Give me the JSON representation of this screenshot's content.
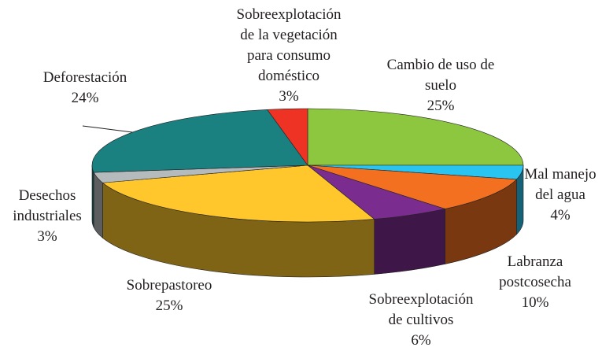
{
  "chart_data": {
    "type": "pie3d",
    "categories": [
      "Cambio de uso de\nsuelo",
      "Mal manejo\ndel agua",
      "Labranza\npostcosecha",
      "Sobreexplotación\nde cultivos",
      "Sobrepastoreo",
      "Desechos\nindustriales",
      "Deforestación",
      "Sobreexplotación\nde la vegetación\npara consumo\ndoméstico"
    ],
    "values": [
      25,
      4,
      10,
      6,
      25,
      3,
      24,
      3
    ],
    "value_labels": [
      "25%",
      "4%",
      "10%",
      "6%",
      "25%",
      "3%",
      "24%",
      "3%"
    ],
    "colors": [
      "#8dc63f",
      "#29c4f0",
      "#f37021",
      "#7b2c8f",
      "#ffc72c",
      "#b5babc",
      "#1b8080",
      "#ee3224"
    ]
  }
}
